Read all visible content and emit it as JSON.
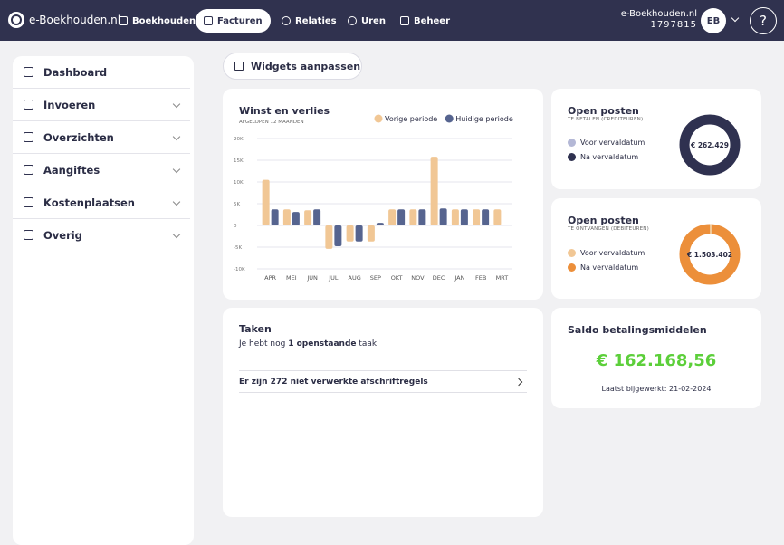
{
  "nav": {
    "logo": "e-Boekhouden.nl",
    "items": [
      "Boekhouden",
      "Facturen",
      "Relaties",
      "Uren",
      "Beheer"
    ],
    "company": "e-Boekhouden.nl",
    "account": "1797815",
    "avatar": "EB",
    "help": "?"
  },
  "sidebar": [
    "Dashboard",
    "Invoeren",
    "Overzichten",
    "Aangiftes",
    "Kostenplaatsen",
    "Overig"
  ],
  "toolbar": {
    "button": "Widgets aanpassen"
  },
  "winst": {
    "title": "Winst en verlies",
    "subtitle": "AFGELOPEN 12 MAANDEN",
    "chart": {
      "type": "bar",
      "categories": [
        "APR",
        "MEI",
        "JUN",
        "JUL",
        "AUG",
        "SEP",
        "OKT",
        "NOV",
        "DEC",
        "JAN",
        "FEB",
        "MRT"
      ],
      "series": [
        {
          "name": "Vorige periode",
          "color": "#f1c795",
          "values": [
            10500,
            3700,
            3500,
            -5400,
            -3700,
            -3700,
            3700,
            3700,
            15800,
            3700,
            3700,
            3700
          ]
        },
        {
          "name": "Huidige periode",
          "color": "#56648f",
          "values": [
            3700,
            3100,
            3700,
            -4800,
            -3700,
            600,
            3700,
            3700,
            3900,
            3700,
            3700,
            null
          ]
        }
      ],
      "ylim": [
        -10000,
        20000
      ],
      "yticks": [
        {
          "value": -10000,
          "label": "-10K"
        },
        {
          "value": -5000,
          "label": "-5K"
        },
        0,
        {
          "value": 5000,
          "label": "5K"
        },
        {
          "value": 10000,
          "label": "10K"
        },
        {
          "value": 15000,
          "label": "15K"
        },
        {
          "value": 20000,
          "label": "20K"
        }
      ],
      "grid": true
    }
  },
  "open_crediteuren": {
    "title": "Open posten",
    "subtitle": "TE BETALEN (CREDITEUREN)",
    "legend": [
      "Voor vervaldatum",
      "Na vervaldatum"
    ],
    "total": "€ 262.429"
  },
  "open_debiteuren": {
    "title": "Open posten",
    "subtitle": "TE ONTVANGEN (DEBITEUREN)",
    "legend": [
      "Voor vervaldatum",
      "Na vervaldatum"
    ],
    "total": "€ 1.503.402"
  },
  "taken": {
    "title": "Taken",
    "text_before": "Je hebt nog",
    "count": "1 openstaande",
    "text_after": "taak",
    "row": "Er zijn 272 niet verwerkte afschriftregels"
  },
  "saldo": {
    "title": "Saldo betalingsmiddelen",
    "amount": "€ 162.168,56",
    "updated": "Laatst bijgewerkt: 21-02-2024"
  }
}
